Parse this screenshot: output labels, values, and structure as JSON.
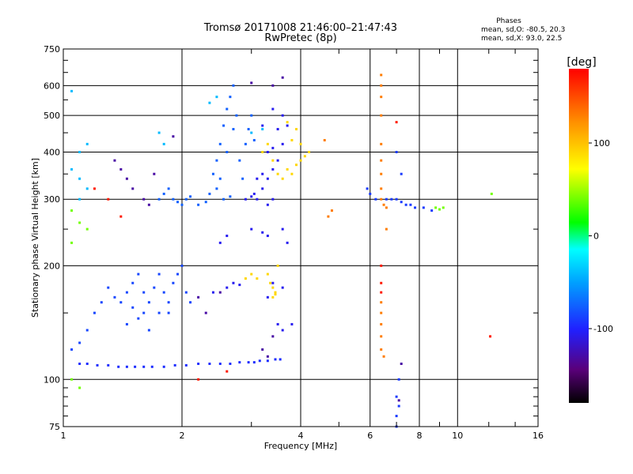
{
  "header": {
    "title_line1": "Tromsø 20171008 21:46:00–21:47:43",
    "title_line2": "RwPretec (8p)"
  },
  "phases": {
    "title": "Phases",
    "line1": "mean, sd,O: -80.5, 20.3",
    "line2": "mean, sd,X:  93.0, 22.5"
  },
  "colorbar": {
    "label": "[deg]",
    "ticks": [
      100,
      0,
      -100
    ],
    "range": [
      -180,
      180
    ]
  },
  "chart_data": {
    "type": "scatter",
    "title": "Tromsø 20171008 21:46:00–21:47:43",
    "subtitle": "RwPretec (8p)",
    "xlabel": "Frequency [MHz]",
    "ylabel": "Stationary phase Virtual Height [km]",
    "x_scale": "log",
    "y_scale": "log",
    "xlim": [
      1,
      16
    ],
    "ylim": [
      75,
      750
    ],
    "x_ticks": [
      1,
      2,
      4,
      6,
      8,
      10,
      16
    ],
    "y_ticks": [
      75,
      100,
      200,
      300,
      400,
      500,
      600,
      750
    ],
    "grid": true,
    "color_by": "phase [deg]",
    "series": [
      {
        "phase": -95,
        "points": [
          [
            1.1,
            110
          ],
          [
            1.15,
            110
          ],
          [
            1.22,
            109
          ],
          [
            1.3,
            109
          ],
          [
            1.38,
            108
          ],
          [
            1.45,
            108
          ],
          [
            1.52,
            108
          ],
          [
            1.6,
            108
          ],
          [
            1.68,
            108
          ],
          [
            1.8,
            108
          ],
          [
            1.92,
            109
          ],
          [
            2.05,
            109
          ],
          [
            2.2,
            110
          ],
          [
            2.35,
            110
          ],
          [
            2.5,
            110
          ],
          [
            2.65,
            110
          ],
          [
            2.8,
            111
          ],
          [
            2.95,
            111
          ],
          [
            3.05,
            111
          ],
          [
            3.15,
            112
          ],
          [
            3.3,
            112
          ],
          [
            3.45,
            113
          ],
          [
            3.55,
            113
          ]
        ]
      },
      {
        "phase": -85,
        "points": [
          [
            1.05,
            120
          ],
          [
            1.1,
            125
          ],
          [
            1.15,
            135
          ],
          [
            1.2,
            150
          ],
          [
            1.25,
            160
          ],
          [
            1.3,
            175
          ],
          [
            1.35,
            165
          ],
          [
            1.4,
            160
          ],
          [
            1.45,
            170
          ],
          [
            1.5,
            180
          ],
          [
            1.55,
            190
          ],
          [
            1.6,
            170
          ],
          [
            1.65,
            160
          ],
          [
            1.7,
            175
          ],
          [
            1.75,
            190
          ],
          [
            1.8,
            170
          ],
          [
            1.85,
            160
          ],
          [
            1.9,
            180
          ],
          [
            1.95,
            190
          ],
          [
            2.0,
            200
          ],
          [
            2.05,
            170
          ],
          [
            2.1,
            160
          ],
          [
            1.45,
            140
          ],
          [
            1.55,
            145
          ],
          [
            1.65,
            135
          ],
          [
            1.75,
            150
          ],
          [
            1.85,
            150
          ],
          [
            1.5,
            155
          ],
          [
            1.6,
            150
          ]
        ]
      },
      {
        "phase": -75,
        "points": [
          [
            1.75,
            300
          ],
          [
            1.8,
            310
          ],
          [
            1.85,
            320
          ],
          [
            1.9,
            300
          ],
          [
            1.95,
            295
          ],
          [
            2.0,
            290
          ],
          [
            2.05,
            300
          ],
          [
            2.1,
            305
          ],
          [
            2.2,
            290
          ],
          [
            2.3,
            295
          ],
          [
            2.35,
            310
          ],
          [
            2.4,
            350
          ],
          [
            2.45,
            380
          ],
          [
            2.5,
            420
          ],
          [
            2.55,
            470
          ],
          [
            2.6,
            520
          ],
          [
            2.65,
            560
          ],
          [
            2.7,
            600
          ],
          [
            2.6,
            400
          ],
          [
            2.5,
            340
          ],
          [
            2.45,
            320
          ],
          [
            2.55,
            300
          ],
          [
            2.65,
            305
          ],
          [
            2.8,
            380
          ],
          [
            2.9,
            420
          ],
          [
            2.85,
            340
          ],
          [
            2.95,
            460
          ],
          [
            3.0,
            500
          ],
          [
            3.05,
            430
          ],
          [
            2.7,
            460
          ],
          [
            2.75,
            500
          ]
        ]
      },
      {
        "phase": -105,
        "points": [
          [
            2.9,
            300
          ],
          [
            3.0,
            305
          ],
          [
            3.05,
            310
          ],
          [
            3.1,
            300
          ],
          [
            3.2,
            320
          ],
          [
            3.3,
            340
          ],
          [
            3.4,
            360
          ],
          [
            3.5,
            380
          ],
          [
            3.2,
            350
          ],
          [
            3.1,
            340
          ],
          [
            3.3,
            400
          ],
          [
            3.4,
            410
          ],
          [
            3.6,
            420
          ],
          [
            3.5,
            460
          ],
          [
            3.7,
            470
          ],
          [
            3.2,
            470
          ],
          [
            3.4,
            520
          ],
          [
            3.6,
            500
          ],
          [
            3.3,
            290
          ],
          [
            3.4,
            300
          ],
          [
            3.6,
            250
          ],
          [
            3.7,
            230
          ],
          [
            3.5,
            140
          ],
          [
            3.6,
            135
          ],
          [
            3.8,
            140
          ],
          [
            3.4,
            180
          ],
          [
            3.6,
            175
          ],
          [
            3.3,
            165
          ],
          [
            2.4,
            170
          ],
          [
            2.6,
            175
          ],
          [
            2.7,
            180
          ],
          [
            2.8,
            178
          ],
          [
            3.0,
            250
          ],
          [
            3.2,
            245
          ],
          [
            3.3,
            240
          ],
          [
            2.5,
            230
          ],
          [
            2.6,
            240
          ]
        ]
      },
      {
        "phase": 90,
        "points": [
          [
            3.2,
            400
          ],
          [
            3.3,
            420
          ],
          [
            3.4,
            380
          ],
          [
            3.5,
            350
          ],
          [
            3.6,
            340
          ],
          [
            3.7,
            360
          ],
          [
            3.8,
            350
          ],
          [
            3.9,
            370
          ],
          [
            4.0,
            380
          ],
          [
            4.1,
            390
          ],
          [
            4.2,
            400
          ],
          [
            4.0,
            420
          ],
          [
            3.8,
            430
          ],
          [
            3.9,
            460
          ],
          [
            3.7,
            480
          ],
          [
            3.3,
            190
          ],
          [
            3.35,
            180
          ],
          [
            3.4,
            175
          ],
          [
            3.45,
            170
          ],
          [
            3.5,
            200
          ],
          [
            2.9,
            185
          ],
          [
            3.0,
            190
          ],
          [
            3.1,
            185
          ],
          [
            3.4,
            165
          ],
          [
            3.45,
            168
          ]
        ]
      },
      {
        "phase": 130,
        "points": [
          [
            6.4,
            640
          ],
          [
            6.4,
            600
          ],
          [
            6.4,
            560
          ],
          [
            6.4,
            500
          ],
          [
            6.4,
            420
          ],
          [
            6.4,
            380
          ],
          [
            6.4,
            350
          ],
          [
            6.4,
            320
          ],
          [
            6.4,
            300
          ],
          [
            6.5,
            290
          ],
          [
            6.6,
            285
          ],
          [
            6.6,
            250
          ],
          [
            6.4,
            160
          ],
          [
            6.4,
            150
          ],
          [
            6.4,
            140
          ],
          [
            6.4,
            130
          ],
          [
            6.4,
            120
          ],
          [
            6.5,
            115
          ],
          [
            4.6,
            430
          ],
          [
            4.7,
            270
          ],
          [
            4.8,
            280
          ]
        ]
      },
      {
        "phase": -90,
        "points": [
          [
            5.9,
            320
          ],
          [
            6.0,
            310
          ],
          [
            6.2,
            300
          ],
          [
            6.6,
            300
          ],
          [
            6.8,
            300
          ],
          [
            7.0,
            300
          ],
          [
            7.2,
            295
          ],
          [
            7.4,
            290
          ],
          [
            7.6,
            290
          ],
          [
            7.8,
            285
          ],
          [
            8.2,
            285
          ],
          [
            8.6,
            280
          ],
          [
            7.0,
            400
          ],
          [
            7.2,
            350
          ],
          [
            7.0,
            90
          ],
          [
            7.1,
            85
          ],
          [
            7.0,
            80
          ],
          [
            7.0,
            75
          ],
          [
            7.1,
            100
          ]
        ]
      },
      {
        "phase": 40,
        "points": [
          [
            8.8,
            285
          ],
          [
            9.0,
            282
          ],
          [
            9.2,
            285
          ],
          [
            12.2,
            310
          ],
          [
            1.05,
            280
          ],
          [
            1.1,
            260
          ],
          [
            1.15,
            250
          ],
          [
            1.05,
            230
          ],
          [
            1.1,
            95
          ],
          [
            1.05,
            100
          ]
        ]
      },
      {
        "phase": 170,
        "points": [
          [
            1.4,
            270
          ],
          [
            1.3,
            300
          ],
          [
            1.2,
            320
          ],
          [
            2.2,
            100
          ],
          [
            2.6,
            105
          ],
          [
            12.1,
            130
          ],
          [
            7.0,
            480
          ],
          [
            6.4,
            200
          ],
          [
            6.4,
            180
          ],
          [
            6.4,
            170
          ]
        ]
      },
      {
        "phase": -40,
        "points": [
          [
            1.1,
            300
          ],
          [
            1.15,
            320
          ],
          [
            1.1,
            340
          ],
          [
            1.05,
            360
          ],
          [
            1.1,
            400
          ],
          [
            1.15,
            420
          ],
          [
            1.05,
            580
          ],
          [
            1.75,
            450
          ],
          [
            1.8,
            420
          ],
          [
            2.35,
            540
          ],
          [
            2.45,
            560
          ],
          [
            3.2,
            460
          ],
          [
            3.0,
            450
          ]
        ]
      },
      {
        "phase": -130,
        "points": [
          [
            1.35,
            380
          ],
          [
            1.4,
            360
          ],
          [
            1.45,
            340
          ],
          [
            1.5,
            320
          ],
          [
            1.6,
            300
          ],
          [
            1.65,
            290
          ],
          [
            1.7,
            350
          ],
          [
            1.9,
            440
          ],
          [
            3.6,
            630
          ],
          [
            3.4,
            600
          ],
          [
            3.0,
            610
          ],
          [
            2.5,
            170
          ],
          [
            2.2,
            165
          ],
          [
            2.3,
            150
          ],
          [
            3.2,
            120
          ],
          [
            3.3,
            115
          ],
          [
            3.4,
            130
          ],
          [
            7.2,
            110
          ],
          [
            7.1,
            88
          ]
        ]
      }
    ]
  }
}
